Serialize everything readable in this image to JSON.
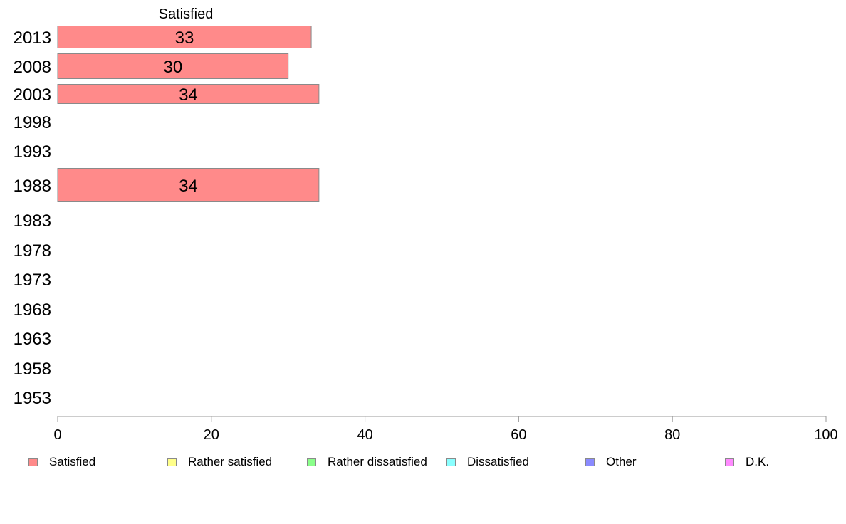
{
  "chart_data": {
    "type": "bar",
    "orientation": "horizontal",
    "title": "",
    "series_title": "Satisfied",
    "categories": [
      "2013",
      "2008",
      "2003",
      "1998",
      "1993",
      "1988",
      "1983",
      "1978",
      "1973",
      "1968",
      "1963",
      "1958",
      "1953"
    ],
    "series": [
      {
        "name": "Satisfied",
        "values": [
          33,
          30,
          34,
          null,
          null,
          34,
          null,
          null,
          null,
          null,
          null,
          null,
          null
        ]
      }
    ],
    "xlim": [
      0,
      100
    ],
    "xticks": [
      "0",
      "20",
      "40",
      "60",
      "80",
      "100"
    ],
    "xlabel": "",
    "ylabel": "",
    "grid": false,
    "legend_position": "bottom"
  },
  "legend": [
    {
      "label": "Satisfied",
      "color": "#ff8a8a"
    },
    {
      "label": "Rather satisfied",
      "color": "#ffff8a"
    },
    {
      "label": "Rather dissatisfied",
      "color": "#8aff8a"
    },
    {
      "label": "Dissatisfied",
      "color": "#8affff"
    },
    {
      "label": "Other",
      "color": "#8a8aff"
    },
    {
      "label": "D.K.",
      "color": "#ff8aff"
    }
  ]
}
